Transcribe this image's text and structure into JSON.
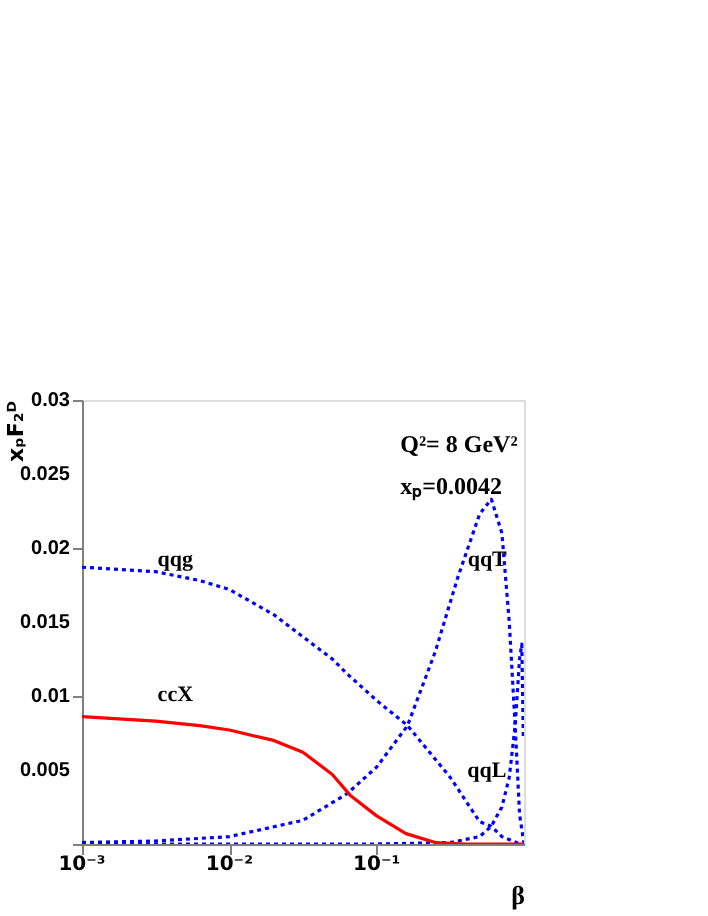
{
  "chart_data": {
    "type": "line",
    "xlabel": "β",
    "ylabel": "xₚF₂ᴰ",
    "log": "x",
    "grid": false,
    "xlim": [
      0.001,
      1
    ],
    "xticks": [
      {
        "value": 0.001,
        "label": "10⁻³"
      },
      {
        "value": 0.01,
        "label": "10⁻²"
      },
      {
        "value": 0.1,
        "label": "10⁻¹"
      }
    ],
    "ylim": [
      0,
      0.03
    ],
    "yticks": [
      {
        "value": 0,
        "label": null
      },
      0.005,
      0.01,
      0.015,
      0.02,
      0.025,
      0.03
    ],
    "series": [
      {
        "name": "qqg",
        "color": "#0000ff",
        "line_style": "dotted",
        "x": [
          0.001,
          0.00316,
          0.0063,
          0.01,
          0.02,
          0.0316,
          0.05,
          0.063,
          0.1,
          0.162,
          0.316,
          0.5,
          0.6,
          0.708,
          0.89,
          1
        ],
        "values": [
          0.0187,
          0.0184,
          0.0178,
          0.0172,
          0.0155,
          0.014,
          0.0125,
          0.0115,
          0.0097,
          0.008,
          0.0045,
          0.0015,
          0.0012,
          0.0005,
          0.0001,
          0
        ]
      },
      {
        "name": "qqT",
        "color": "#0000ff",
        "line_style": "dotted",
        "x": [
          0.001,
          0.00316,
          0.01,
          0.0316,
          0.063,
          0.1,
          0.162,
          0.25,
          0.355,
          0.5,
          0.6,
          0.708,
          0.794,
          0.871,
          0.933,
          1
        ],
        "values": [
          0.0001,
          0.0002,
          0.0005,
          0.0016,
          0.0034,
          0.0052,
          0.008,
          0.013,
          0.018,
          0.0223,
          0.0233,
          0.021,
          0.015,
          0.008,
          0.002,
          0
        ]
      },
      {
        "name": "qqL",
        "color": "#0000ff",
        "line_style": "dotted",
        "x": [
          0.001,
          0.1,
          0.316,
          0.5,
          0.6,
          0.708,
          0.794,
          0.871,
          0.933,
          0.966,
          0.989
        ],
        "values": [
          0,
          0,
          0.0001,
          0.0005,
          0.0012,
          0.0025,
          0.0045,
          0.008,
          0.0125,
          0.0135,
          0.0073
        ]
      },
      {
        "name": "ccX",
        "color": "#ff0000",
        "line_style": "solid",
        "x": [
          0.001,
          0.00316,
          0.0063,
          0.01,
          0.02,
          0.0316,
          0.05,
          0.066,
          0.1,
          0.158,
          0.25,
          0.398,
          1
        ],
        "values": [
          0.0086,
          0.0083,
          0.008,
          0.0077,
          0.007,
          0.0062,
          0.0047,
          0.0033,
          0.0019,
          0.0007,
          0.0001,
          0,
          0
        ]
      }
    ],
    "annotations": [
      "Q²= 8 GeV²",
      "xₚ=0.0042"
    ]
  }
}
